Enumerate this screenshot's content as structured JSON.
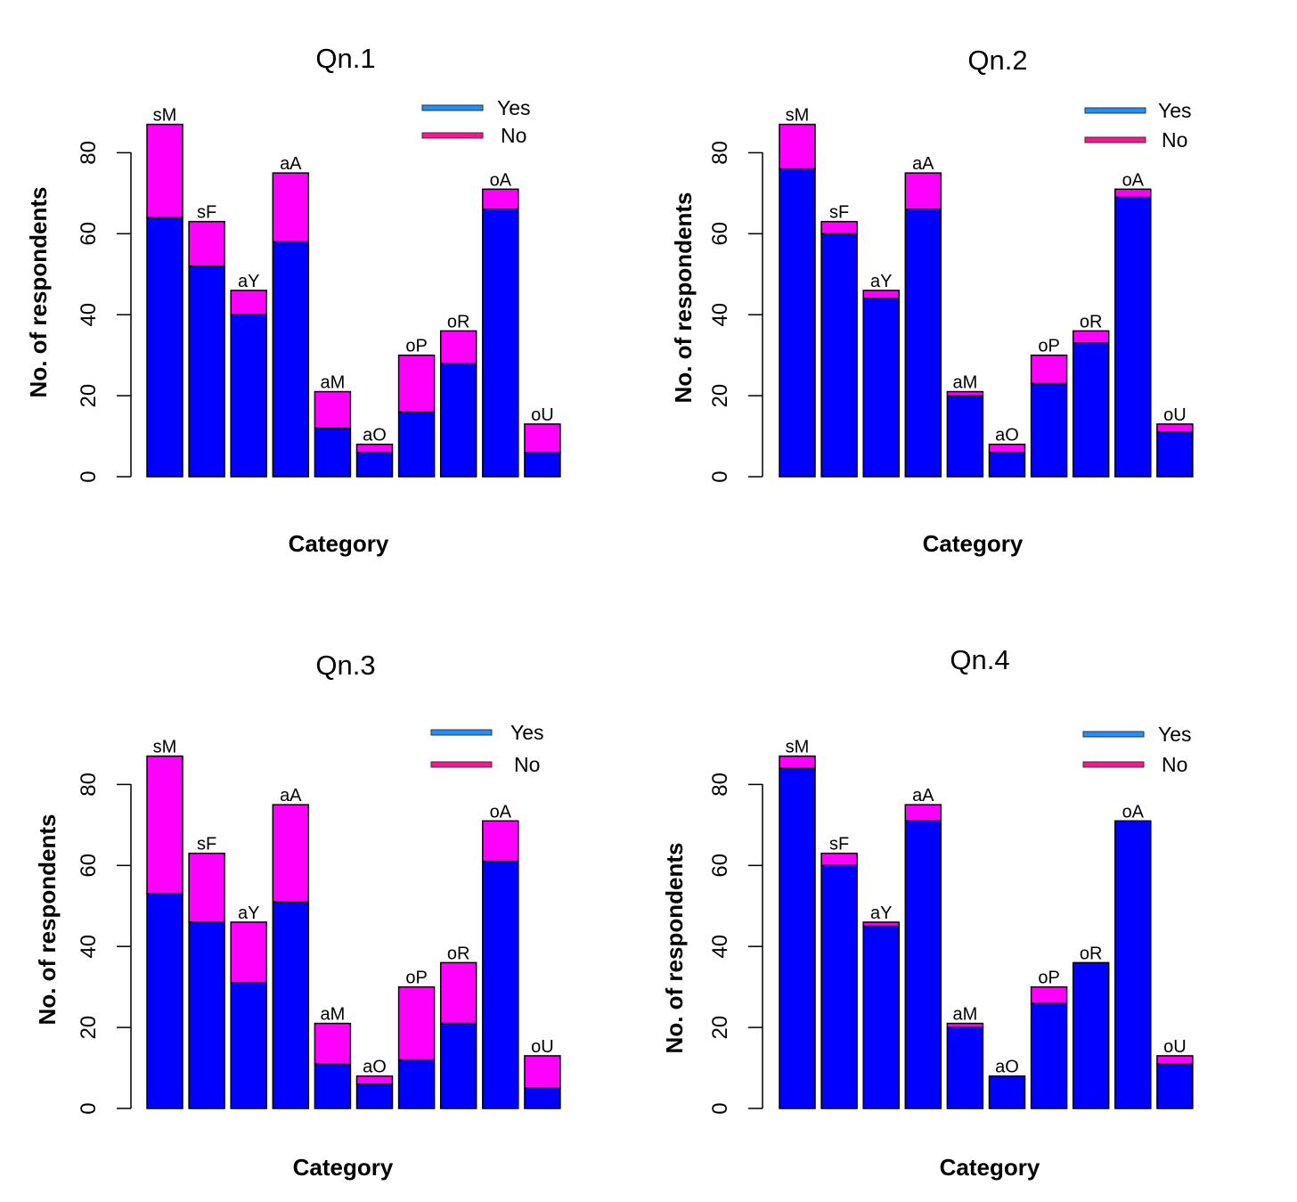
{
  "colors": {
    "yes": "#0000ff",
    "no": "#ff00ff",
    "legend_yes": "#1e90ff",
    "legend_no": "#ff1493",
    "axis": "#000000"
  },
  "legend": {
    "yes": "Yes",
    "no": "No"
  },
  "chart_data": [
    {
      "type": "bar",
      "stacked": true,
      "title": "Qn.1",
      "xlabel": "Category",
      "ylabel": "No. of respondents",
      "ylim": [
        0,
        80
      ],
      "yticks": [
        "0",
        "20",
        "40",
        "60",
        "80"
      ],
      "categories": [
        "sM",
        "sF",
        "aY",
        "aA",
        "aM",
        "aO",
        "oP",
        "oR",
        "oA",
        "oU"
      ],
      "series": [
        {
          "name": "Yes",
          "values": [
            64,
            52,
            40,
            58,
            12,
            6,
            16,
            28,
            66,
            6
          ]
        },
        {
          "name": "No",
          "values": [
            23,
            11,
            6,
            17,
            9,
            2,
            14,
            8,
            5,
            7
          ]
        }
      ],
      "legend_position": "top-right"
    },
    {
      "type": "bar",
      "stacked": true,
      "title": "Qn.2",
      "xlabel": "Category",
      "ylabel": "No. of respondents",
      "ylim": [
        0,
        80
      ],
      "yticks": [
        "0",
        "20",
        "40",
        "60",
        "80"
      ],
      "categories": [
        "sM",
        "sF",
        "aY",
        "aA",
        "aM",
        "aO",
        "oP",
        "oR",
        "oA",
        "oU"
      ],
      "series": [
        {
          "name": "Yes",
          "values": [
            76,
            60,
            44,
            66,
            20,
            6,
            23,
            33,
            69,
            11
          ]
        },
        {
          "name": "No",
          "values": [
            11,
            3,
            2,
            9,
            1,
            2,
            7,
            3,
            2,
            2
          ]
        }
      ],
      "legend_position": "top-right"
    },
    {
      "type": "bar",
      "stacked": true,
      "title": "Qn.3",
      "xlabel": "Category",
      "ylabel": "No. of respondents",
      "ylim": [
        0,
        80
      ],
      "yticks": [
        "0",
        "20",
        "40",
        "60",
        "80"
      ],
      "categories": [
        "sM",
        "sF",
        "aY",
        "aA",
        "aM",
        "aO",
        "oP",
        "oR",
        "oA",
        "oU"
      ],
      "series": [
        {
          "name": "Yes",
          "values": [
            53,
            46,
            31,
            51,
            11,
            6,
            12,
            21,
            61,
            5
          ]
        },
        {
          "name": "No",
          "values": [
            34,
            17,
            15,
            24,
            10,
            2,
            18,
            15,
            10,
            8
          ]
        }
      ],
      "legend_position": "top-right"
    },
    {
      "type": "bar",
      "stacked": true,
      "title": "Qn.4",
      "xlabel": "Category",
      "ylabel": "No. of respondents",
      "ylim": [
        0,
        80
      ],
      "yticks": [
        "0",
        "20",
        "40",
        "60",
        "80"
      ],
      "categories": [
        "sM",
        "sF",
        "aY",
        "aA",
        "aM",
        "aO",
        "oP",
        "oR",
        "oA",
        "oU"
      ],
      "series": [
        {
          "name": "Yes",
          "values": [
            84,
            60,
            45,
            71,
            20,
            8,
            26,
            36,
            71,
            11
          ]
        },
        {
          "name": "No",
          "values": [
            3,
            3,
            1,
            4,
            1,
            0,
            4,
            0,
            0,
            2
          ]
        }
      ],
      "legend_position": "top-right"
    }
  ]
}
